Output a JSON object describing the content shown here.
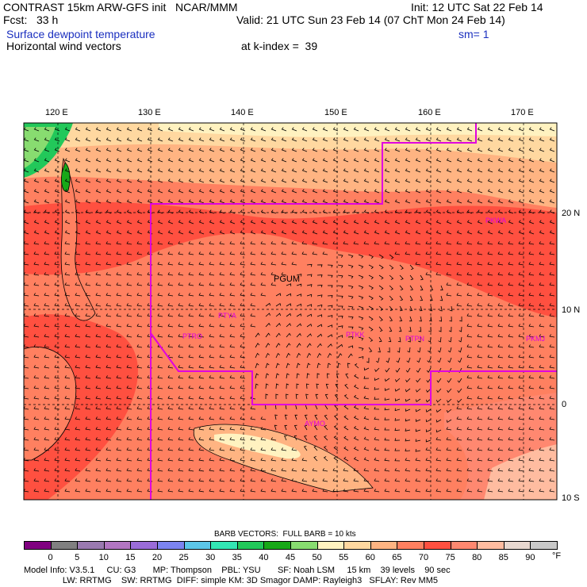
{
  "header": {
    "model": "CONTRAST 15km ARW-GFS init   NCAR/MMM",
    "init": "Init: 12 UTC Sat 22 Feb 14",
    "fcst": "Fcst:   33 h",
    "valid": "Valid: 21 UTC Sun 23 Feb 14 (07 ChT Mon 24 Feb 14)",
    "field1": "Surface dewpoint temperature",
    "smoothing": "sm= 1",
    "field2": "Horizontal wind vectors",
    "level": "at k-index =  39"
  },
  "lon_labels": [
    "120 E",
    "130 E",
    "140 E",
    "150 E",
    "160 E",
    "170 E"
  ],
  "lat_labels": [
    "20 N",
    "10 N",
    "0",
    "10 S"
  ],
  "stations": {
    "pgum": "PGUM",
    "ptro": "PTRO",
    "ptya": "PTYA",
    "ptkk": "PTKK",
    "ptpn": "PTPN",
    "pkmj": "PKMJ",
    "pkwa": "PKWA",
    "ayMO": "AYMO"
  },
  "barb_note": "BARB VECTORS:  FULL BARB = 10 kts",
  "colorbar": {
    "labels": [
      "0",
      "5",
      "10",
      "15",
      "20",
      "25",
      "30",
      "35",
      "40",
      "45",
      "50",
      "55",
      "60",
      "65",
      "70",
      "75",
      "80",
      "85",
      "90"
    ],
    "unit": "°F",
    "colors": [
      "#800080",
      "#808080",
      "#9a7ab0",
      "#b276c2",
      "#9a6cd8",
      "#7c84f0",
      "#5cc6e8",
      "#33e6b4",
      "#22c85a",
      "#18a818",
      "#88dc70",
      "#fff2c0",
      "#ffd8a0",
      "#ffb482",
      "#ff8060",
      "#ff5040",
      "#ff8870",
      "#ffbca0",
      "#e8d8d0",
      "#c8c8c8"
    ]
  },
  "footer": {
    "line1": "Model Info: V3.5.1     CU: G3       MP: Thompson    PBL: YSU       SF: Noah LSM     15 km    39 levels    90 sec",
    "line2": "                LW: RRTMG    SW: RRTMG  DIFF: simple KM: 3D Smagor DAMP: Rayleigh3   SFLAY: Rev MM5"
  }
}
